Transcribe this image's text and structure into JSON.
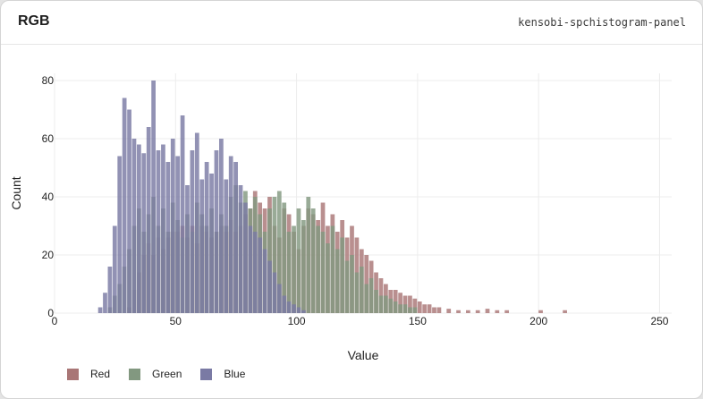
{
  "panel": {
    "title": "RGB",
    "id": "kensobi-spchistogram-panel"
  },
  "chart_data": {
    "type": "bar",
    "subtype": "histogram",
    "title": "RGB",
    "xlabel": "Value",
    "ylabel": "Count",
    "xlim": [
      0,
      255
    ],
    "ylim": [
      0,
      80
    ],
    "xticks": [
      0,
      50,
      100,
      150,
      200,
      250
    ],
    "yticks": [
      0,
      20,
      40,
      60,
      80
    ],
    "bin_width": 1.75,
    "grid": true,
    "legend_position": "bottom-left",
    "series": [
      {
        "name": "Red",
        "color": "#a97676",
        "bins": [
          [
            30,
            2
          ],
          [
            32,
            8
          ],
          [
            34,
            14
          ],
          [
            36,
            20
          ],
          [
            38,
            24
          ],
          [
            40,
            20
          ],
          [
            42,
            26
          ],
          [
            44,
            22
          ],
          [
            46,
            26
          ],
          [
            48,
            28
          ],
          [
            50,
            28
          ],
          [
            52,
            30
          ],
          [
            54,
            26
          ],
          [
            56,
            30
          ],
          [
            58,
            24
          ],
          [
            60,
            30
          ],
          [
            62,
            28
          ],
          [
            64,
            26
          ],
          [
            66,
            28
          ],
          [
            68,
            30
          ],
          [
            70,
            28
          ],
          [
            72,
            32
          ],
          [
            74,
            28
          ],
          [
            76,
            30
          ],
          [
            78,
            34
          ],
          [
            80,
            36
          ],
          [
            82,
            42
          ],
          [
            84,
            38
          ],
          [
            86,
            36
          ],
          [
            88,
            40
          ],
          [
            90,
            30
          ],
          [
            92,
            26
          ],
          [
            94,
            36
          ],
          [
            96,
            34
          ],
          [
            98,
            28
          ],
          [
            100,
            22
          ],
          [
            102,
            30
          ],
          [
            104,
            36
          ],
          [
            106,
            34
          ],
          [
            108,
            32
          ],
          [
            110,
            38
          ],
          [
            112,
            30
          ],
          [
            114,
            34
          ],
          [
            116,
            28
          ],
          [
            118,
            32
          ],
          [
            120,
            26
          ],
          [
            122,
            30
          ],
          [
            124,
            26
          ],
          [
            126,
            22
          ],
          [
            128,
            20
          ],
          [
            130,
            18
          ],
          [
            132,
            14
          ],
          [
            134,
            12
          ],
          [
            136,
            10
          ],
          [
            138,
            8
          ],
          [
            140,
            8
          ],
          [
            142,
            7
          ],
          [
            144,
            6
          ],
          [
            146,
            6
          ],
          [
            148,
            5
          ],
          [
            150,
            4
          ],
          [
            152,
            3
          ],
          [
            154,
            3
          ],
          [
            156,
            2
          ],
          [
            158,
            2
          ],
          [
            162,
            1.5
          ],
          [
            166,
            1
          ],
          [
            170,
            1
          ],
          [
            174,
            1
          ],
          [
            178,
            1.5
          ],
          [
            182,
            1
          ],
          [
            186,
            1
          ],
          [
            200,
            1
          ],
          [
            210,
            1
          ]
        ]
      },
      {
        "name": "Green",
        "color": "#829880",
        "bins": [
          [
            22,
            2
          ],
          [
            24,
            6
          ],
          [
            26,
            10
          ],
          [
            28,
            16
          ],
          [
            30,
            22
          ],
          [
            32,
            30
          ],
          [
            34,
            36
          ],
          [
            36,
            28
          ],
          [
            38,
            34
          ],
          [
            40,
            40
          ],
          [
            42,
            30
          ],
          [
            44,
            36
          ],
          [
            46,
            28
          ],
          [
            48,
            38
          ],
          [
            50,
            32
          ],
          [
            52,
            26
          ],
          [
            54,
            34
          ],
          [
            56,
            28
          ],
          [
            58,
            38
          ],
          [
            60,
            34
          ],
          [
            62,
            30
          ],
          [
            64,
            36
          ],
          [
            66,
            28
          ],
          [
            68,
            34
          ],
          [
            70,
            30
          ],
          [
            72,
            40
          ],
          [
            74,
            44
          ],
          [
            76,
            38
          ],
          [
            78,
            42
          ],
          [
            80,
            36
          ],
          [
            82,
            40
          ],
          [
            84,
            34
          ],
          [
            86,
            28
          ],
          [
            88,
            36
          ],
          [
            90,
            40
          ],
          [
            92,
            42
          ],
          [
            94,
            38
          ],
          [
            96,
            28
          ],
          [
            98,
            30
          ],
          [
            100,
            36
          ],
          [
            102,
            32
          ],
          [
            104,
            40
          ],
          [
            106,
            36
          ],
          [
            108,
            30
          ],
          [
            110,
            28
          ],
          [
            112,
            24
          ],
          [
            114,
            30
          ],
          [
            116,
            22
          ],
          [
            118,
            26
          ],
          [
            120,
            18
          ],
          [
            122,
            20
          ],
          [
            124,
            14
          ],
          [
            126,
            16
          ],
          [
            128,
            10
          ],
          [
            130,
            12
          ],
          [
            132,
            8
          ],
          [
            134,
            6
          ],
          [
            136,
            6
          ],
          [
            138,
            5
          ],
          [
            140,
            4
          ],
          [
            142,
            3
          ],
          [
            144,
            3
          ],
          [
            146,
            2
          ],
          [
            148,
            2
          ]
        ]
      },
      {
        "name": "Blue",
        "color": "#7a7aa4",
        "bins": [
          [
            18,
            2
          ],
          [
            20,
            7
          ],
          [
            22,
            16
          ],
          [
            24,
            30
          ],
          [
            26,
            54
          ],
          [
            28,
            74
          ],
          [
            30,
            70
          ],
          [
            32,
            60
          ],
          [
            34,
            58
          ],
          [
            36,
            55
          ],
          [
            38,
            64
          ],
          [
            40,
            80
          ],
          [
            42,
            56
          ],
          [
            44,
            58
          ],
          [
            46,
            52
          ],
          [
            48,
            60
          ],
          [
            50,
            54
          ],
          [
            52,
            68
          ],
          [
            54,
            44
          ],
          [
            56,
            56
          ],
          [
            58,
            62
          ],
          [
            60,
            46
          ],
          [
            62,
            52
          ],
          [
            64,
            48
          ],
          [
            66,
            56
          ],
          [
            68,
            60
          ],
          [
            70,
            46
          ],
          [
            72,
            54
          ],
          [
            74,
            52
          ],
          [
            76,
            44
          ],
          [
            78,
            38
          ],
          [
            80,
            30
          ],
          [
            82,
            28
          ],
          [
            84,
            26
          ],
          [
            86,
            22
          ],
          [
            88,
            18
          ],
          [
            90,
            14
          ],
          [
            92,
            10
          ],
          [
            94,
            6
          ],
          [
            96,
            4
          ],
          [
            98,
            3
          ],
          [
            100,
            2
          ],
          [
            102,
            1
          ]
        ]
      }
    ]
  }
}
